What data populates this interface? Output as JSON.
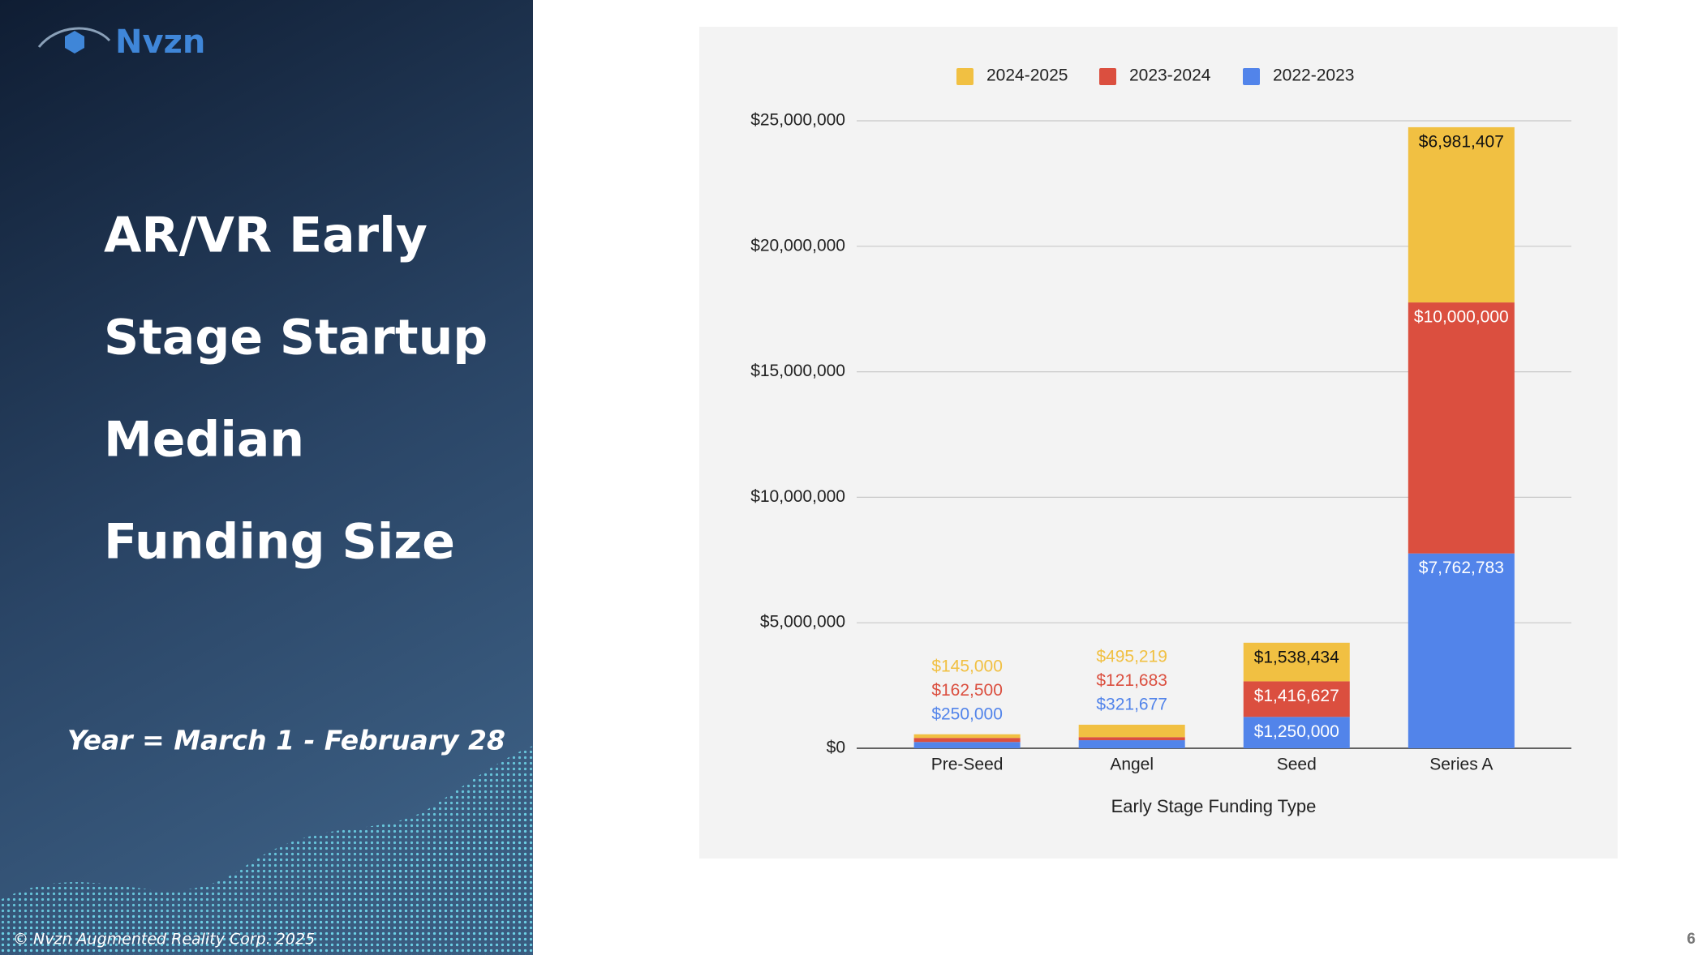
{
  "slide": {
    "logo": "Nvzn",
    "title_lines": [
      "AR/VR Early",
      "Stage Startup",
      "Median",
      "Funding Size"
    ],
    "note": "Year = March 1 - February 28",
    "copyright": "© Nvzn Augmented Reality Corp. 2025",
    "page_number": "6"
  },
  "chart_data": {
    "type": "stacked_bar",
    "x_label": "Early Stage Funding Type",
    "categories": [
      "Pre-Seed",
      "Angel",
      "Seed",
      "Series A"
    ],
    "series": [
      {
        "name": "2024-2025",
        "color": "#f1c042",
        "values": [
          145000,
          495219,
          1538434,
          6981407
        ],
        "value_labels": [
          "$145,000",
          "$495,219",
          "$1,538,434",
          "$6,981,407"
        ]
      },
      {
        "name": "2023-2024",
        "color": "#db4f3f",
        "values": [
          162500,
          121683,
          1416627,
          10000000
        ],
        "value_labels": [
          "$162,500",
          "$121,683",
          "$1,416,627",
          "$10,000,000"
        ]
      },
      {
        "name": "2022-2023",
        "color": "#5284ea",
        "values": [
          250000,
          321677,
          1250000,
          7762783
        ],
        "value_labels": [
          "$250,000",
          "$321,677",
          "$1,250,000",
          "$7,762,783"
        ]
      }
    ],
    "ylim": [
      0,
      25000000
    ],
    "yticks": [
      {
        "value": 0,
        "label": "$0"
      },
      {
        "value": 5000000,
        "label": "$5,000,000"
      },
      {
        "value": 10000000,
        "label": "$10,000,000"
      },
      {
        "value": 15000000,
        "label": "$15,000,000"
      },
      {
        "value": 20000000,
        "label": "$20,000,000"
      },
      {
        "value": 25000000,
        "label": "$25,000,000"
      }
    ],
    "grid": true,
    "legend": "top"
  }
}
